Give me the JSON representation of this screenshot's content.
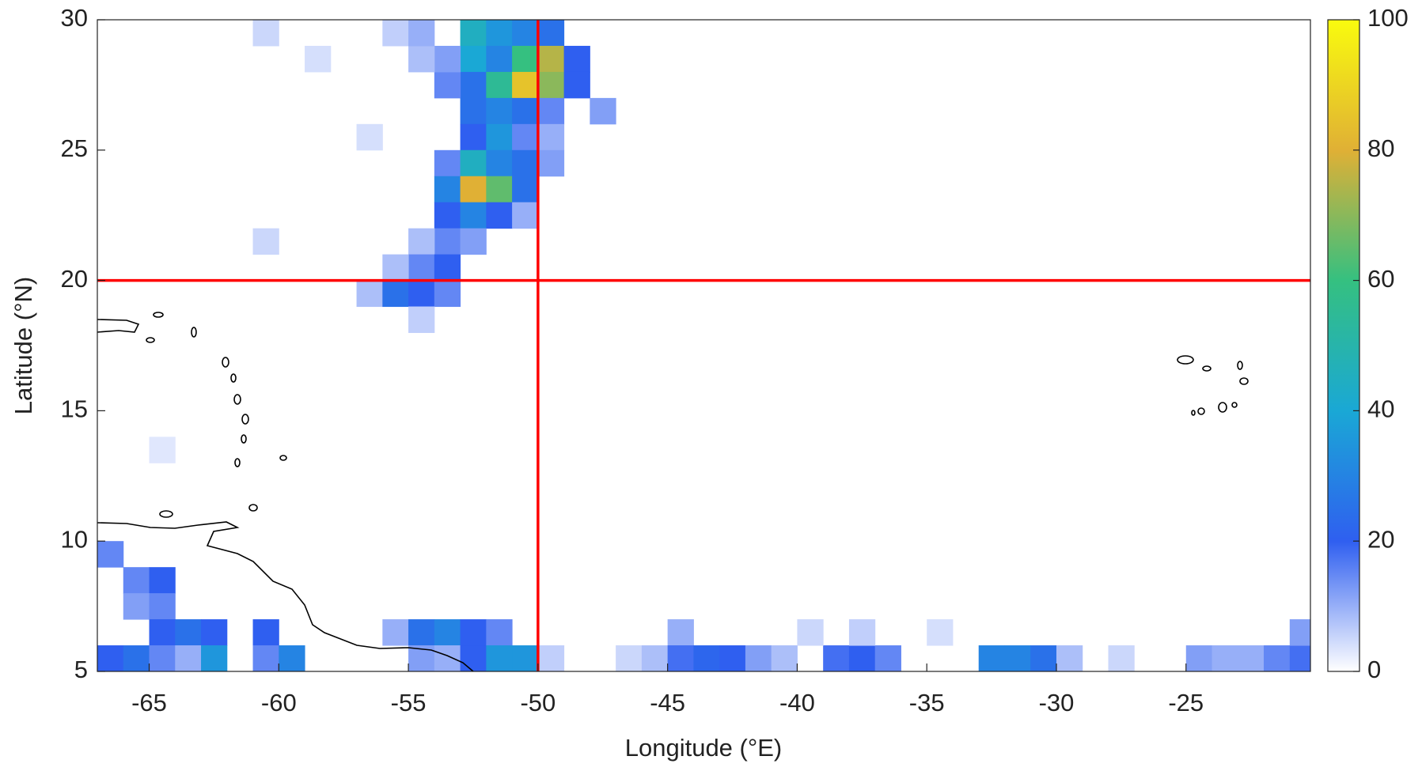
{
  "chart_data": {
    "type": "heatmap",
    "xlabel": "Longitude (°E)",
    "ylabel": "Latitude (°N)",
    "xlim": [
      -67,
      -20.2
    ],
    "ylim": [
      5,
      30
    ],
    "xticks": [
      -65,
      -60,
      -55,
      -50,
      -45,
      -40,
      -35,
      -30,
      -25
    ],
    "yticks": [
      5,
      10,
      15,
      20,
      25,
      30
    ],
    "vline": -50,
    "hline": 20,
    "line_color": "#ff0000",
    "colorbar": {
      "lim": [
        0,
        100
      ],
      "ticks": [
        0,
        20,
        40,
        60,
        80,
        100
      ]
    },
    "colormap": [
      "#ffffff",
      "#2f5ff0",
      "#1aa8d5",
      "#35c080",
      "#e0b035",
      "#f9fb0e"
    ],
    "x": [
      -52.5,
      -51.5,
      -50.5,
      -49.5,
      -52.5,
      -51.5,
      -50.5,
      -49.5,
      -48.5,
      -52.5,
      -51.5,
      -50.5,
      -49.5,
      -48.5,
      -53.5,
      -53.5,
      -54.5,
      -55.5,
      -54.5,
      -52.5,
      -51.5,
      -50.5,
      -49.5,
      -47.5,
      -52.5,
      -51.5,
      -50.5,
      -49.5,
      -53.5,
      -52.5,
      -51.5,
      -50.5,
      -49.5,
      -53.5,
      -52.5,
      -51.5,
      -50.5,
      -53.5,
      -52.5,
      -51.5,
      -50.5,
      -53.5,
      -52.5,
      -54.5,
      -54.5,
      -53.5,
      -55.5,
      -56.5,
      -55.5,
      -54.5,
      -53.5,
      -54.5,
      -60.5,
      -58.5,
      -56.5,
      -60.5,
      -64.5,
      -66.5,
      -65.5,
      -64.5,
      -65.5,
      -64.5,
      -64.5,
      -63.5,
      -62.5,
      -66.5,
      -65.5,
      -64.5,
      -63.5,
      -62.5,
      -60.5,
      -60.5,
      -59.5,
      -55.5,
      -54.5,
      -53.5,
      -52.5,
      -51.5,
      -54.5,
      -53.5,
      -52.5,
      -51.5,
      -50.5,
      -49.5,
      -46.5,
      -45.5,
      -44.5,
      -44.5,
      -43.5,
      -42.5,
      -41.5,
      -40.5,
      -38.5,
      -37.5,
      -36.5,
      -39.5,
      -37.5,
      -34.5,
      -32.5,
      -31.5,
      -30.5,
      -29.5,
      -27.5,
      -24.5,
      -23.5,
      -22.5,
      -21.5,
      -20.5,
      -20.5
    ],
    "y": [
      29.5,
      29.5,
      29.5,
      29.5,
      28.5,
      28.5,
      28.5,
      28.5,
      28.5,
      27.5,
      27.5,
      27.5,
      27.5,
      27.5,
      27.5,
      28.5,
      28.5,
      29.5,
      29.5,
      26.5,
      26.5,
      26.5,
      26.5,
      26.5,
      25.5,
      25.5,
      25.5,
      25.5,
      24.5,
      24.5,
      24.5,
      24.5,
      24.5,
      23.5,
      23.5,
      23.5,
      23.5,
      22.5,
      22.5,
      22.5,
      22.5,
      21.5,
      21.5,
      21.5,
      20.5,
      20.5,
      20.5,
      19.5,
      19.5,
      19.5,
      19.5,
      18.5,
      29.5,
      28.5,
      25.5,
      21.5,
      13.5,
      9.5,
      8.5,
      8.5,
      7.5,
      7.5,
      6.5,
      6.5,
      6.5,
      5.5,
      5.5,
      5.5,
      5.5,
      5.5,
      6.5,
      5.5,
      5.5,
      6.5,
      6.5,
      6.5,
      6.5,
      6.5,
      5.5,
      5.5,
      5.5,
      5.5,
      5.5,
      5.5,
      5.5,
      5.5,
      6.5,
      5.5,
      5.5,
      5.5,
      5.5,
      5.5,
      5.5,
      5.5,
      5.5,
      6.5,
      6.5,
      6.5,
      5.5,
      5.5,
      5.5,
      5.5,
      5.5,
      5.5,
      5.5,
      5.5,
      5.5,
      5.5,
      6.5
    ],
    "values": [
      45,
      35,
      30,
      25,
      40,
      30,
      60,
      75,
      20,
      25,
      55,
      85,
      70,
      20,
      15,
      12,
      8,
      6,
      10,
      25,
      30,
      25,
      15,
      12,
      20,
      35,
      15,
      10,
      15,
      45,
      30,
      25,
      12,
      30,
      80,
      65,
      25,
      20,
      30,
      20,
      10,
      15,
      12,
      8,
      15,
      20,
      8,
      8,
      25,
      20,
      15,
      6,
      5,
      4,
      4,
      5,
      3,
      15,
      15,
      20,
      12,
      15,
      20,
      25,
      20,
      20,
      25,
      15,
      10,
      35,
      20,
      15,
      30,
      10,
      25,
      30,
      20,
      15,
      12,
      10,
      20,
      35,
      35,
      6,
      5,
      8,
      10,
      18,
      22,
      20,
      12,
      8,
      18,
      20,
      15,
      5,
      6,
      4,
      30,
      30,
      25,
      8,
      5,
      12,
      10,
      10,
      15,
      18,
      12
    ]
  }
}
